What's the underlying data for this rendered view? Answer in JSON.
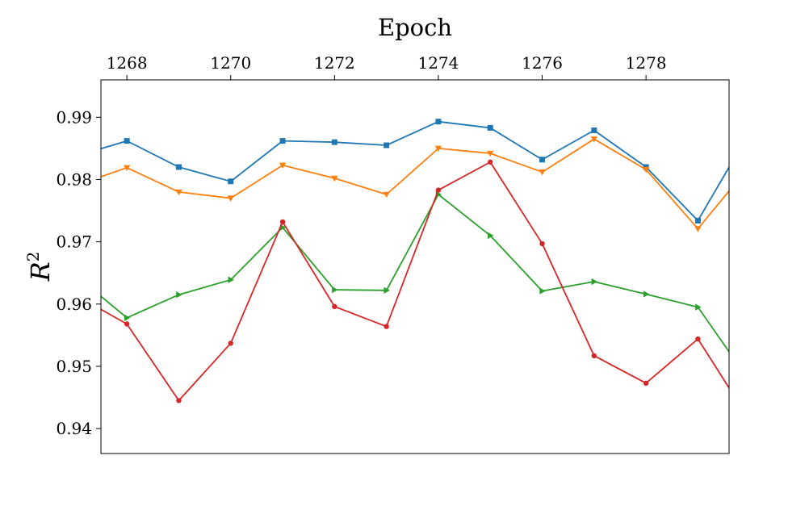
{
  "chart_data": {
    "type": "line",
    "xlabel": "Epoch",
    "ylabel": "R",
    "ylabel_superscript": "2",
    "xlim": [
      1267.5,
      1279.6
    ],
    "ylim": [
      0.936,
      0.996
    ],
    "x_ticks": [
      1268,
      1270,
      1272,
      1274,
      1276,
      1278
    ],
    "y_ticks": [
      0.94,
      0.95,
      0.96,
      0.97,
      0.98,
      0.99
    ],
    "x_axis_position": "top",
    "grid": false,
    "x": [
      1267,
      1268,
      1269,
      1270,
      1271,
      1272,
      1273,
      1274,
      1275,
      1276,
      1277,
      1278,
      1279,
      1280
    ],
    "series": [
      {
        "color": "#1f77b4",
        "marker": "square",
        "values": [
          0.9837,
          0.9862,
          0.982,
          0.9797,
          0.9862,
          0.986,
          0.9855,
          0.9893,
          0.9883,
          0.9832,
          0.9879,
          0.982,
          0.9734,
          0.9877
        ]
      },
      {
        "color": "#ff7f0e",
        "marker": "triangle-down",
        "values": [
          0.979,
          0.9819,
          0.978,
          0.977,
          0.9823,
          0.9802,
          0.9776,
          0.985,
          0.9842,
          0.9812,
          0.9865,
          0.9816,
          0.9721,
          0.9822
        ]
      },
      {
        "color": "#2ca02c",
        "marker": "triangle-right",
        "values": [
          0.9647,
          0.9578,
          0.9615,
          0.9639,
          0.9723,
          0.9623,
          0.9622,
          0.9776,
          0.971,
          0.9621,
          0.9636,
          0.9616,
          0.9595,
          0.9476
        ]
      },
      {
        "color": "#d62728",
        "marker": "circle",
        "values": [
          0.9615,
          0.9568,
          0.9445,
          0.9537,
          0.9732,
          0.9596,
          0.9564,
          0.9783,
          0.9828,
          0.9697,
          0.9517,
          0.9473,
          0.9544,
          0.9413
        ]
      }
    ]
  }
}
